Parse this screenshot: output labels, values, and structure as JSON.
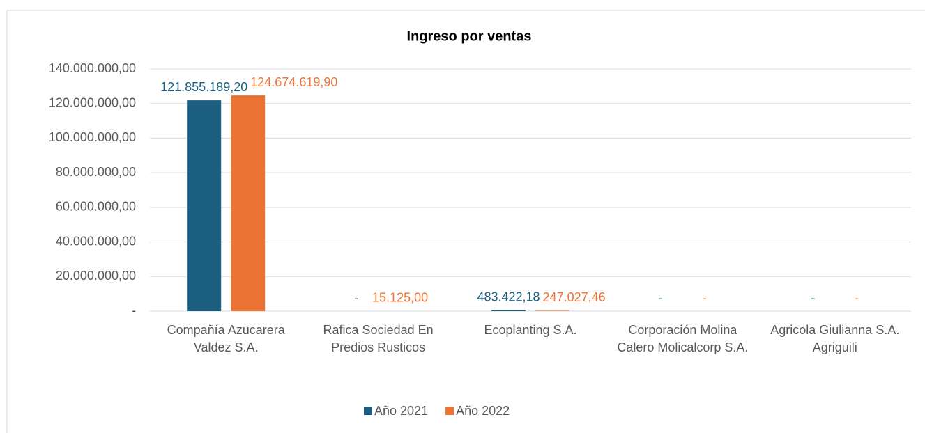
{
  "chart_data": {
    "type": "bar",
    "title": "Ingreso por ventas",
    "categories": [
      "Compañía Azucarera Valdez S.A.",
      "Rafica Sociedad En Predios Rusticos",
      "Ecoplanting S.A.",
      "Corporación Molina Calero Molicalcorp S.A.",
      "Agricola Giulianna S.A. Agriguili"
    ],
    "series": [
      {
        "name": "Año 2021",
        "color": "#1b5e7f",
        "values": [
          121855189.2,
          0,
          483422.18,
          0,
          0
        ],
        "value_labels": [
          "121.855.189,20",
          "-",
          "483.422,18",
          "-",
          "-"
        ]
      },
      {
        "name": "Año 2022",
        "color": "#eb7434",
        "values": [
          124674619.9,
          15125.0,
          247027.46,
          0,
          0
        ],
        "value_labels": [
          "124.674.619,90",
          "15.125,00",
          "247.027,46",
          "-",
          "-"
        ]
      }
    ],
    "ylim": [
      0,
      140000000
    ],
    "yticks": [
      {
        "value": 0,
        "label": "-"
      },
      {
        "value": 20000000,
        "label": "20.000.000,00"
      },
      {
        "value": 40000000,
        "label": "40.000.000,00"
      },
      {
        "value": 60000000,
        "label": "60.000.000,00"
      },
      {
        "value": 80000000,
        "label": "80.000.000,00"
      },
      {
        "value": 100000000,
        "label": "100.000.000,00"
      },
      {
        "value": 120000000,
        "label": "120.000.000,00"
      },
      {
        "value": 140000000,
        "label": "140.000.000,00"
      }
    ],
    "grid": true,
    "legend": "bottom"
  }
}
